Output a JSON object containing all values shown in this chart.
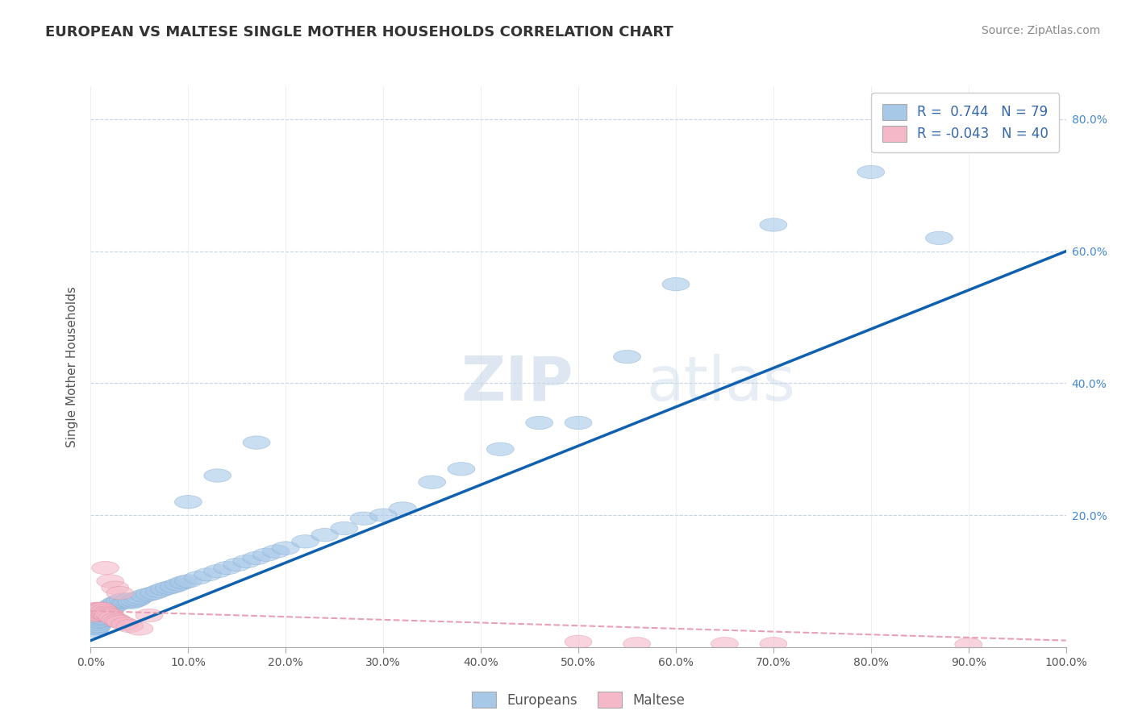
{
  "title": "EUROPEAN VS MALTESE SINGLE MOTHER HOUSEHOLDS CORRELATION CHART",
  "source": "Source: ZipAtlas.com",
  "ylabel": "Single Mother Households",
  "xlim": [
    0,
    1.0
  ],
  "ylim": [
    0,
    0.85
  ],
  "xticks": [
    0.0,
    0.1,
    0.2,
    0.3,
    0.4,
    0.5,
    0.6,
    0.7,
    0.8,
    0.9,
    1.0
  ],
  "xtick_labels": [
    "0.0%",
    "10.0%",
    "20.0%",
    "30.0%",
    "40.0%",
    "50.0%",
    "60.0%",
    "70.0%",
    "80.0%",
    "90.0%",
    "100.0%"
  ],
  "yticks": [
    0.0,
    0.2,
    0.4,
    0.6,
    0.8
  ],
  "ytick_labels": [
    "",
    "20.0%",
    "40.0%",
    "60.0%",
    "80.0%"
  ],
  "euro_R": 0.744,
  "euro_N": 79,
  "maltese_R": -0.043,
  "maltese_N": 40,
  "legend_label_euro": "Europeans",
  "legend_label_maltese": "Maltese",
  "euro_color": "#a8c8e8",
  "euro_edge_color": "#80aad0",
  "euro_line_color": "#1060b0",
  "maltese_color": "#f4b8c8",
  "maltese_edge_color": "#e090a8",
  "maltese_line_color": "#e8a0b4",
  "watermark_zip": "ZIP",
  "watermark_atlas": "atlas",
  "background_color": "#ffffff",
  "grid_color": "#c8d4e4",
  "europeans_x": [
    0.003,
    0.004,
    0.005,
    0.005,
    0.006,
    0.006,
    0.007,
    0.007,
    0.007,
    0.008,
    0.008,
    0.009,
    0.009,
    0.01,
    0.01,
    0.011,
    0.011,
    0.012,
    0.013,
    0.014,
    0.015,
    0.016,
    0.017,
    0.018,
    0.019,
    0.02,
    0.021,
    0.022,
    0.023,
    0.025,
    0.027,
    0.03,
    0.033,
    0.036,
    0.038,
    0.04,
    0.042,
    0.045,
    0.048,
    0.05,
    0.055,
    0.06,
    0.065,
    0.07,
    0.075,
    0.08,
    0.085,
    0.09,
    0.095,
    0.1,
    0.11,
    0.12,
    0.13,
    0.14,
    0.15,
    0.16,
    0.17,
    0.18,
    0.19,
    0.2,
    0.22,
    0.24,
    0.26,
    0.28,
    0.3,
    0.32,
    0.35,
    0.38,
    0.42,
    0.46,
    0.5,
    0.55,
    0.6,
    0.7,
    0.8,
    0.87,
    0.1,
    0.13,
    0.17
  ],
  "europeans_y": [
    0.03,
    0.025,
    0.028,
    0.035,
    0.03,
    0.038,
    0.032,
    0.04,
    0.035,
    0.038,
    0.042,
    0.04,
    0.045,
    0.043,
    0.048,
    0.045,
    0.05,
    0.048,
    0.05,
    0.052,
    0.055,
    0.053,
    0.058,
    0.055,
    0.06,
    0.058,
    0.062,
    0.06,
    0.065,
    0.063,
    0.068,
    0.07,
    0.072,
    0.068,
    0.07,
    0.072,
    0.068,
    0.07,
    0.072,
    0.075,
    0.078,
    0.08,
    0.082,
    0.085,
    0.088,
    0.09,
    0.092,
    0.095,
    0.098,
    0.1,
    0.105,
    0.11,
    0.115,
    0.12,
    0.125,
    0.13,
    0.135,
    0.14,
    0.145,
    0.15,
    0.16,
    0.17,
    0.18,
    0.195,
    0.2,
    0.21,
    0.25,
    0.27,
    0.3,
    0.34,
    0.34,
    0.44,
    0.55,
    0.64,
    0.72,
    0.62,
    0.22,
    0.26,
    0.31
  ],
  "maltese_x": [
    0.003,
    0.004,
    0.004,
    0.005,
    0.005,
    0.006,
    0.006,
    0.007,
    0.007,
    0.008,
    0.008,
    0.009,
    0.01,
    0.01,
    0.011,
    0.012,
    0.013,
    0.014,
    0.015,
    0.016,
    0.017,
    0.018,
    0.02,
    0.022,
    0.025,
    0.028,
    0.03,
    0.035,
    0.04,
    0.05,
    0.015,
    0.02,
    0.025,
    0.03,
    0.06,
    0.5,
    0.56,
    0.65,
    0.7,
    0.9
  ],
  "maltese_y": [
    0.055,
    0.048,
    0.052,
    0.05,
    0.055,
    0.052,
    0.058,
    0.05,
    0.055,
    0.053,
    0.058,
    0.055,
    0.052,
    0.058,
    0.055,
    0.058,
    0.052,
    0.055,
    0.05,
    0.052,
    0.048,
    0.05,
    0.048,
    0.045,
    0.042,
    0.04,
    0.038,
    0.035,
    0.032,
    0.028,
    0.12,
    0.1,
    0.09,
    0.082,
    0.048,
    0.008,
    0.005,
    0.005,
    0.005,
    0.004
  ]
}
